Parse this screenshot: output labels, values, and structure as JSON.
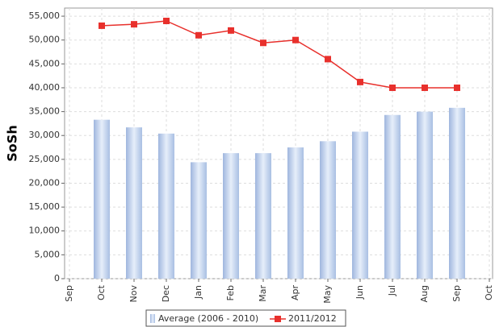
{
  "chart_data": {
    "type": "bar_line",
    "y_label": "SoSh",
    "categories": [
      "Sep",
      "Oct",
      "Nov",
      "Dec",
      "Jan",
      "Feb",
      "Mar",
      "Apr",
      "May",
      "Jun",
      "Jul",
      "Aug",
      "Sep",
      "Oct"
    ],
    "series": [
      {
        "name": "Average (2006 - 2010)",
        "type": "bar",
        "color": "#b8cbe8",
        "values": [
          null,
          33300,
          31700,
          30400,
          24400,
          26300,
          26300,
          27500,
          28800,
          30800,
          34300,
          35000,
          35800,
          null
        ]
      },
      {
        "name": "2011/2012",
        "type": "line",
        "color": "#e8302c",
        "values": [
          null,
          53000,
          53300,
          54000,
          51000,
          52000,
          49400,
          50000,
          46000,
          41200,
          40000,
          40000,
          40000,
          null
        ]
      }
    ],
    "ylim": [
      0,
      56700
    ],
    "yticks": [
      0,
      {
        "value": 5000,
        "label": "5,000"
      },
      {
        "value": 10000,
        "label": "10,000"
      },
      {
        "value": 15000,
        "label": "15,000"
      },
      {
        "value": 20000,
        "label": "20,000"
      },
      {
        "value": 25000,
        "label": "25,000"
      },
      {
        "value": 30000,
        "label": "30,000"
      },
      {
        "value": 35000,
        "label": "35,000"
      },
      {
        "value": 40000,
        "label": "40,000"
      },
      {
        "value": 45000,
        "label": "45,000"
      },
      {
        "value": 50000,
        "label": "50,000"
      },
      {
        "value": 55000,
        "label": "55,000"
      }
    ],
    "grid": true
  }
}
